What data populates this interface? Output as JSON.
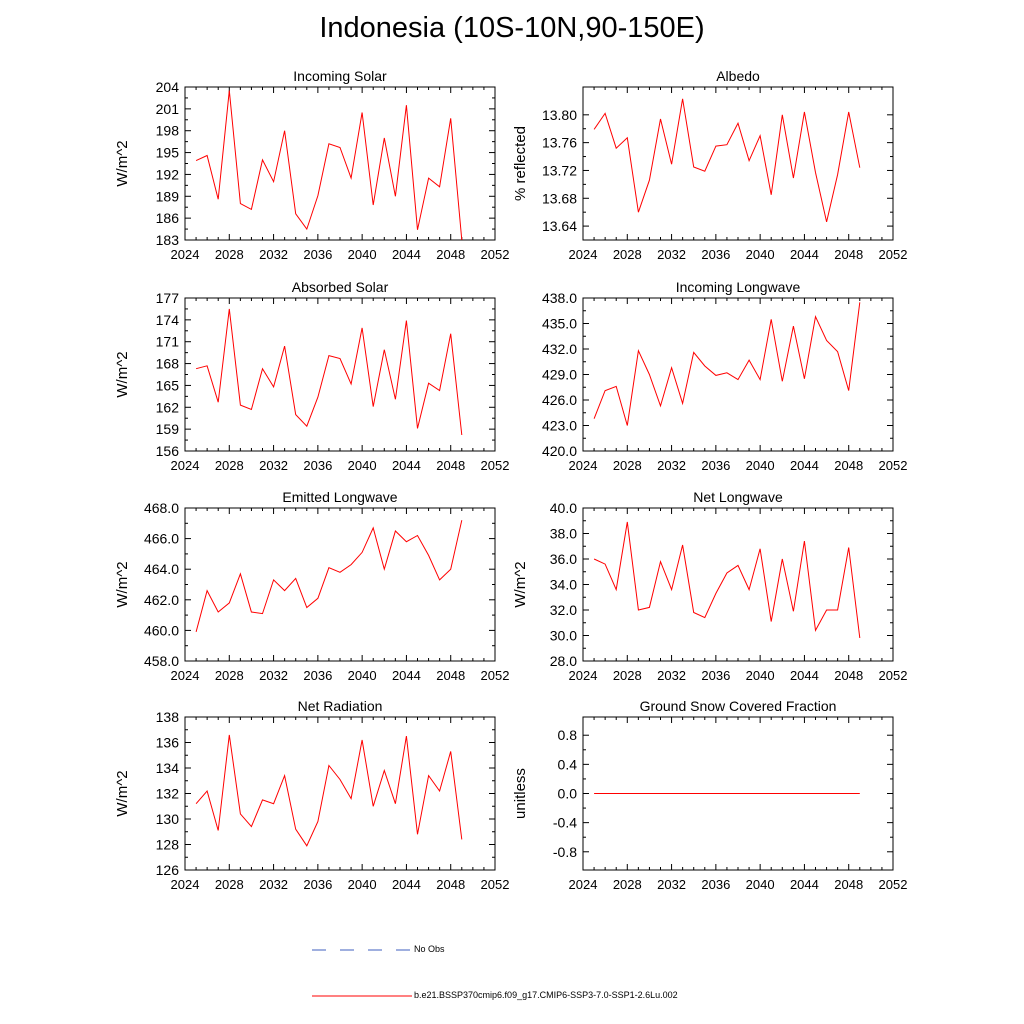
{
  "title": "Indonesia (10S-10N,90-150E)",
  "colors": {
    "model_line": "#ff0000",
    "obs_line": "#3f5fbf",
    "axis": "#000000"
  },
  "legend": {
    "obs_label": "No Obs",
    "model_label": "b.e21.BSSP370cmip6.f09_g17.CMIP6-SSP3-7.0-SSP1-2.6Lu.002"
  },
  "chart_data": [
    {
      "type": "line",
      "title": "Incoming Solar",
      "ylabel": "W/m^2",
      "xlim": [
        2024,
        2052
      ],
      "ylim": [
        183,
        204
      ],
      "xticks": [
        2024,
        2028,
        2032,
        2036,
        2040,
        2044,
        2048,
        2052
      ],
      "yticks": [
        183,
        186,
        189,
        192,
        195,
        198,
        201,
        204
      ],
      "ytick_labels": [
        "183",
        "186",
        "189",
        "192",
        "195",
        "198",
        "201",
        "204"
      ],
      "series": [
        {
          "x": [
            2025,
            2026,
            2027,
            2028,
            2029,
            2030,
            2031,
            2032,
            2033,
            2034,
            2035,
            2036,
            2037,
            2038,
            2039,
            2040,
            2041,
            2042,
            2043,
            2044,
            2045,
            2046,
            2047,
            2048,
            2049
          ],
          "values": [
            193.9,
            194.6,
            188.6,
            203.5,
            188.0,
            187.2,
            194.0,
            191.0,
            198.0,
            186.6,
            184.5,
            189.1,
            196.2,
            195.7,
            191.5,
            200.5,
            187.8,
            197.0,
            189.0,
            201.5,
            184.4,
            191.5,
            190.3,
            199.7,
            183.0
          ]
        }
      ]
    },
    {
      "type": "line",
      "title": "Albedo",
      "ylabel": "% reflected",
      "xlim": [
        2024,
        2052
      ],
      "ylim": [
        13.62,
        13.84
      ],
      "xticks": [
        2024,
        2028,
        2032,
        2036,
        2040,
        2044,
        2048,
        2052
      ],
      "yticks": [
        13.64,
        13.68,
        13.72,
        13.76,
        13.8
      ],
      "ytick_labels": [
        "13.64",
        "13.68",
        "13.72",
        "13.76",
        "13.80"
      ],
      "series": [
        {
          "x": [
            2025,
            2026,
            2027,
            2028,
            2029,
            2030,
            2031,
            2032,
            2033,
            2034,
            2035,
            2036,
            2037,
            2038,
            2039,
            2040,
            2041,
            2042,
            2043,
            2044,
            2045,
            2046,
            2047,
            2048,
            2049
          ],
          "values": [
            13.779,
            13.802,
            13.752,
            13.767,
            13.66,
            13.706,
            13.794,
            13.729,
            13.823,
            13.725,
            13.719,
            13.755,
            13.757,
            13.788,
            13.734,
            13.77,
            13.685,
            13.8,
            13.709,
            13.804,
            13.717,
            13.646,
            13.714,
            13.804,
            13.724
          ]
        }
      ]
    },
    {
      "type": "line",
      "title": "Absorbed Solar",
      "ylabel": "W/m^2",
      "xlim": [
        2024,
        2052
      ],
      "ylim": [
        156,
        177
      ],
      "xticks": [
        2024,
        2028,
        2032,
        2036,
        2040,
        2044,
        2048,
        2052
      ],
      "yticks": [
        156,
        159,
        162,
        165,
        168,
        171,
        174,
        177
      ],
      "ytick_labels": [
        "156",
        "159",
        "162",
        "165",
        "168",
        "171",
        "174",
        "177"
      ],
      "series": [
        {
          "x": [
            2025,
            2026,
            2027,
            2028,
            2029,
            2030,
            2031,
            2032,
            2033,
            2034,
            2035,
            2036,
            2037,
            2038,
            2039,
            2040,
            2041,
            2042,
            2043,
            2044,
            2045,
            2046,
            2047,
            2048,
            2049
          ],
          "values": [
            167.3,
            167.7,
            162.7,
            175.5,
            162.3,
            161.7,
            167.3,
            164.8,
            170.4,
            161.0,
            159.4,
            163.4,
            169.1,
            168.7,
            165.2,
            172.9,
            162.1,
            169.9,
            163.1,
            173.9,
            159.1,
            165.3,
            164.3,
            172.1,
            158.2
          ]
        }
      ]
    },
    {
      "type": "line",
      "title": "Incoming Longwave",
      "ylabel": "",
      "xlim": [
        2024,
        2052
      ],
      "ylim": [
        420,
        438
      ],
      "xticks": [
        2024,
        2028,
        2032,
        2036,
        2040,
        2044,
        2048,
        2052
      ],
      "yticks": [
        420,
        423,
        426,
        429,
        432,
        435,
        438
      ],
      "ytick_labels": [
        "420.0",
        "423.0",
        "426.0",
        "429.0",
        "432.0",
        "435.0",
        "438.0"
      ],
      "series": [
        {
          "x": [
            2025,
            2026,
            2027,
            2028,
            2029,
            2030,
            2031,
            2032,
            2033,
            2034,
            2035,
            2036,
            2037,
            2038,
            2039,
            2040,
            2041,
            2042,
            2043,
            2044,
            2045,
            2046,
            2047,
            2048,
            2049
          ],
          "values": [
            423.8,
            427.1,
            427.6,
            423.0,
            431.8,
            429.0,
            425.3,
            429.8,
            425.6,
            431.6,
            430.0,
            428.9,
            429.2,
            428.4,
            430.7,
            428.4,
            435.5,
            428.2,
            434.7,
            428.5,
            435.8,
            433.0,
            431.7,
            427.1,
            437.5
          ]
        }
      ]
    },
    {
      "type": "line",
      "title": "Emitted Longwave",
      "ylabel": "W/m^2",
      "xlim": [
        2024,
        2052
      ],
      "ylim": [
        458,
        468
      ],
      "xticks": [
        2024,
        2028,
        2032,
        2036,
        2040,
        2044,
        2048,
        2052
      ],
      "yticks": [
        458,
        460,
        462,
        464,
        466,
        468
      ],
      "ytick_labels": [
        "458.0",
        "460.0",
        "462.0",
        "464.0",
        "466.0",
        "468.0"
      ],
      "series": [
        {
          "x": [
            2025,
            2026,
            2027,
            2028,
            2029,
            2030,
            2031,
            2032,
            2033,
            2034,
            2035,
            2036,
            2037,
            2038,
            2039,
            2040,
            2041,
            2042,
            2043,
            2044,
            2045,
            2046,
            2047,
            2048,
            2049
          ],
          "values": [
            459.9,
            462.6,
            461.2,
            461.8,
            463.7,
            461.2,
            461.1,
            463.3,
            462.6,
            463.4,
            461.5,
            462.1,
            464.1,
            463.8,
            464.3,
            465.1,
            466.7,
            464.0,
            466.5,
            465.8,
            466.2,
            464.9,
            463.3,
            464.0,
            467.2
          ]
        }
      ]
    },
    {
      "type": "line",
      "title": "Net Longwave",
      "ylabel": "W/m^2",
      "xlim": [
        2024,
        2052
      ],
      "ylim": [
        28,
        40
      ],
      "xticks": [
        2024,
        2028,
        2032,
        2036,
        2040,
        2044,
        2048,
        2052
      ],
      "yticks": [
        28,
        30,
        32,
        34,
        36,
        38,
        40
      ],
      "ytick_labels": [
        "28.0",
        "30.0",
        "32.0",
        "34.0",
        "36.0",
        "38.0",
        "40.0"
      ],
      "series": [
        {
          "x": [
            2025,
            2026,
            2027,
            2028,
            2029,
            2030,
            2031,
            2032,
            2033,
            2034,
            2035,
            2036,
            2037,
            2038,
            2039,
            2040,
            2041,
            2042,
            2043,
            2044,
            2045,
            2046,
            2047,
            2048,
            2049
          ],
          "values": [
            36.0,
            35.6,
            33.6,
            38.9,
            32.0,
            32.2,
            35.8,
            33.6,
            37.1,
            31.8,
            31.4,
            33.3,
            34.9,
            35.5,
            33.6,
            36.8,
            31.1,
            36.0,
            31.9,
            37.4,
            30.4,
            32.0,
            32.0,
            36.9,
            29.8
          ]
        }
      ]
    },
    {
      "type": "line",
      "title": "Net Radiation",
      "ylabel": "W/m^2",
      "xlim": [
        2024,
        2052
      ],
      "ylim": [
        126,
        138
      ],
      "xticks": [
        2024,
        2028,
        2032,
        2036,
        2040,
        2044,
        2048,
        2052
      ],
      "yticks": [
        126,
        128,
        130,
        132,
        134,
        136,
        138
      ],
      "ytick_labels": [
        "126",
        "128",
        "130",
        "132",
        "134",
        "136",
        "138"
      ],
      "series": [
        {
          "x": [
            2025,
            2026,
            2027,
            2028,
            2029,
            2030,
            2031,
            2032,
            2033,
            2034,
            2035,
            2036,
            2037,
            2038,
            2039,
            2040,
            2041,
            2042,
            2043,
            2044,
            2045,
            2046,
            2047,
            2048,
            2049
          ],
          "values": [
            131.2,
            132.2,
            129.1,
            136.6,
            130.4,
            129.4,
            131.5,
            131.2,
            133.4,
            129.2,
            127.9,
            129.8,
            134.2,
            133.1,
            131.6,
            136.2,
            131.0,
            133.8,
            131.2,
            136.5,
            128.8,
            133.4,
            132.2,
            135.3,
            128.4
          ]
        }
      ]
    },
    {
      "type": "line",
      "title": "Ground Snow Covered Fraction",
      "ylabel": "unitless",
      "xlim": [
        2024,
        2052
      ],
      "ylim": [
        -1.05,
        1.05
      ],
      "xticks": [
        2024,
        2028,
        2032,
        2036,
        2040,
        2044,
        2048,
        2052
      ],
      "yticks": [
        -0.8,
        -0.4,
        0.0,
        0.4,
        0.8
      ],
      "ytick_labels": [
        "-0.8",
        "-0.4",
        "0.0",
        "0.4",
        "0.8"
      ],
      "series": [
        {
          "x": [
            2025,
            2026,
            2027,
            2028,
            2029,
            2030,
            2031,
            2032,
            2033,
            2034,
            2035,
            2036,
            2037,
            2038,
            2039,
            2040,
            2041,
            2042,
            2043,
            2044,
            2045,
            2046,
            2047,
            2048,
            2049
          ],
          "values": [
            0,
            0,
            0,
            0,
            0,
            0,
            0,
            0,
            0,
            0,
            0,
            0,
            0,
            0,
            0,
            0,
            0,
            0,
            0,
            0,
            0,
            0,
            0,
            0,
            0
          ]
        }
      ]
    }
  ]
}
